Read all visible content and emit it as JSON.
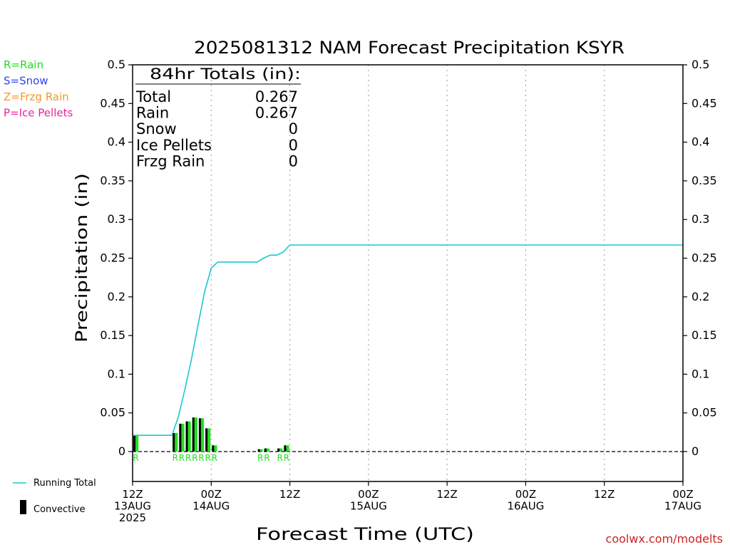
{
  "chart_data": {
    "type": "bar",
    "title": "2025081312 NAM Forecast Precipitation KSYR",
    "xlabel": "Forecast Time (UTC)",
    "ylabel": "Precipitation (in)",
    "ylim": [
      -0.04,
      0.5
    ],
    "xlim_hours": [
      0,
      84
    ],
    "grid": "vertical dotted at 12-hour ticks",
    "y_ticks": [
      {
        "v": 0,
        "label": "0"
      },
      {
        "v": 0.05,
        "label": "0.05"
      },
      {
        "v": 0.1,
        "label": "0.1"
      },
      {
        "v": 0.15,
        "label": "0.15"
      },
      {
        "v": 0.2,
        "label": "0.2"
      },
      {
        "v": 0.25,
        "label": "0.25"
      },
      {
        "v": 0.3,
        "label": "0.3"
      },
      {
        "v": 0.35,
        "label": "0.35"
      },
      {
        "v": 0.4,
        "label": "0.4"
      },
      {
        "v": 0.45,
        "label": "0.45"
      },
      {
        "v": 0.5,
        "label": "0.5"
      }
    ],
    "x_ticks": [
      {
        "h": 0,
        "lines": [
          "12Z",
          "13AUG",
          "2025"
        ]
      },
      {
        "h": 12,
        "lines": [
          "00Z",
          "14AUG"
        ]
      },
      {
        "h": 24,
        "lines": [
          "12Z"
        ]
      },
      {
        "h": 36,
        "lines": [
          "00Z",
          "15AUG"
        ]
      },
      {
        "h": 48,
        "lines": [
          "12Z"
        ]
      },
      {
        "h": 60,
        "lines": [
          "00Z",
          "16AUG"
        ]
      },
      {
        "h": 72,
        "lines": [
          "12Z"
        ]
      },
      {
        "h": 84,
        "lines": [
          "00Z",
          "17AUG"
        ]
      }
    ],
    "bars": [
      {
        "h": 1,
        "value": 0.021,
        "type": "R"
      },
      {
        "h": 7,
        "value": 0.024,
        "type": "R"
      },
      {
        "h": 8,
        "value": 0.036,
        "type": "R"
      },
      {
        "h": 9,
        "value": 0.039,
        "type": "R"
      },
      {
        "h": 10,
        "value": 0.044,
        "type": "R"
      },
      {
        "h": 11,
        "value": 0.043,
        "type": "R"
      },
      {
        "h": 12,
        "value": 0.03,
        "type": "R"
      },
      {
        "h": 13,
        "value": 0.008,
        "type": "R"
      },
      {
        "h": 20,
        "value": 0.003,
        "type": "R"
      },
      {
        "h": 21,
        "value": 0.004,
        "type": "R"
      },
      {
        "h": 23,
        "value": 0.004,
        "type": "R"
      },
      {
        "h": 24,
        "value": 0.008,
        "type": "R"
      }
    ],
    "running_total": {
      "name": "Running Total",
      "color": "#18c8d0",
      "points": [
        [
          0,
          0.021
        ],
        [
          6,
          0.021
        ],
        [
          7,
          0.045
        ],
        [
          8,
          0.081
        ],
        [
          9,
          0.12
        ],
        [
          10,
          0.164
        ],
        [
          11,
          0.207
        ],
        [
          12,
          0.237
        ],
        [
          13,
          0.245
        ],
        [
          19,
          0.245
        ],
        [
          20,
          0.25
        ],
        [
          21,
          0.254
        ],
        [
          22,
          0.254
        ],
        [
          23,
          0.258
        ],
        [
          24,
          0.267
        ],
        [
          84,
          0.267
        ]
      ]
    },
    "legend": {
      "placement": "left",
      "types": [
        {
          "label": "R=Rain",
          "color": "#22dd22"
        },
        {
          "label": "S=Snow",
          "color": "#3344ee"
        },
        {
          "label": "Z=Frzg Rain",
          "color": "#ee9933"
        },
        {
          "label": "P=Ice Pellets",
          "color": "#ee2299"
        }
      ],
      "running_total_label": "Running Total",
      "convective_label": "Convective"
    },
    "totals": {
      "heading": "84hr Totals (in):",
      "rows": [
        {
          "label": "Total",
          "value": "0.267"
        },
        {
          "label": "Rain",
          "value": "0.267"
        },
        {
          "label": "Snow",
          "value": "0"
        },
        {
          "label": "Ice Pellets",
          "value": "0"
        },
        {
          "label": "Frzg Rain",
          "value": "0"
        }
      ]
    },
    "colors": {
      "rain_bar": "#22dd22",
      "convective_bar": "#000000",
      "line": "#18c8d0"
    }
  },
  "footer": {
    "credit": "coolwx.com/modelts",
    "credit_color": "#cc2222"
  }
}
